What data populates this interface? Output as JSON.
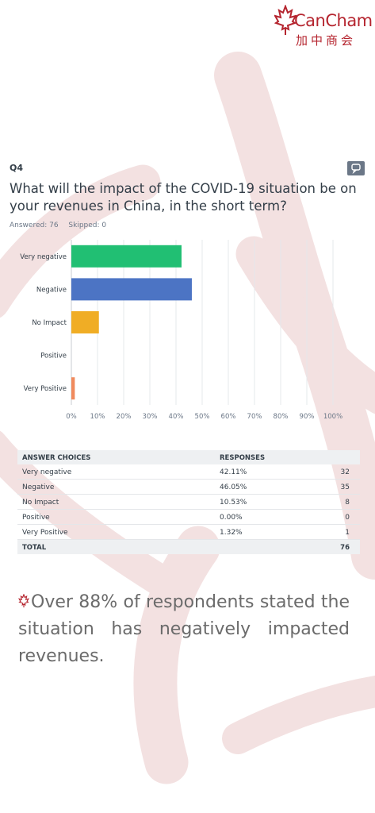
{
  "brand": {
    "name_en": "CanCham",
    "name_zh": "加中商会",
    "accent_color": "#b5252f"
  },
  "question": {
    "number": "Q4",
    "text": "What will the impact of the COVID-19 situation be on your revenues in China, in the short term?",
    "answered_label": "Answered: 76",
    "skipped_label": "Skipped: 0",
    "comment_icon": "comment-icon"
  },
  "chart_data": {
    "type": "bar",
    "orientation": "horizontal",
    "categories": [
      "Very negative",
      "Negative",
      "No Impact",
      "Positive",
      "Very Positive"
    ],
    "values": [
      42.11,
      46.05,
      10.53,
      0.0,
      1.32
    ],
    "colors": [
      "#21bf73",
      "#4c74c4",
      "#f0ad25",
      "#cccccc",
      "#f08a5d"
    ],
    "xlim": [
      0,
      100
    ],
    "xticks": [
      "0%",
      "10%",
      "20%",
      "30%",
      "40%",
      "50%",
      "60%",
      "70%",
      "80%",
      "90%",
      "100%"
    ],
    "grid": true
  },
  "table": {
    "headers": [
      "ANSWER CHOICES",
      "RESPONSES"
    ],
    "rows": [
      {
        "choice": "Very negative",
        "percent": "42.11%",
        "count": "32"
      },
      {
        "choice": "Negative",
        "percent": "46.05%",
        "count": "35"
      },
      {
        "choice": "No Impact",
        "percent": "10.53%",
        "count": "8"
      },
      {
        "choice": "Positive",
        "percent": "0.00%",
        "count": "0"
      },
      {
        "choice": "Very Positive",
        "percent": "1.32%",
        "count": "1"
      }
    ],
    "total_label": "TOTAL",
    "total_value": "76"
  },
  "statement": "Over 88% of respondents stated the situation has negatively impacted revenues."
}
